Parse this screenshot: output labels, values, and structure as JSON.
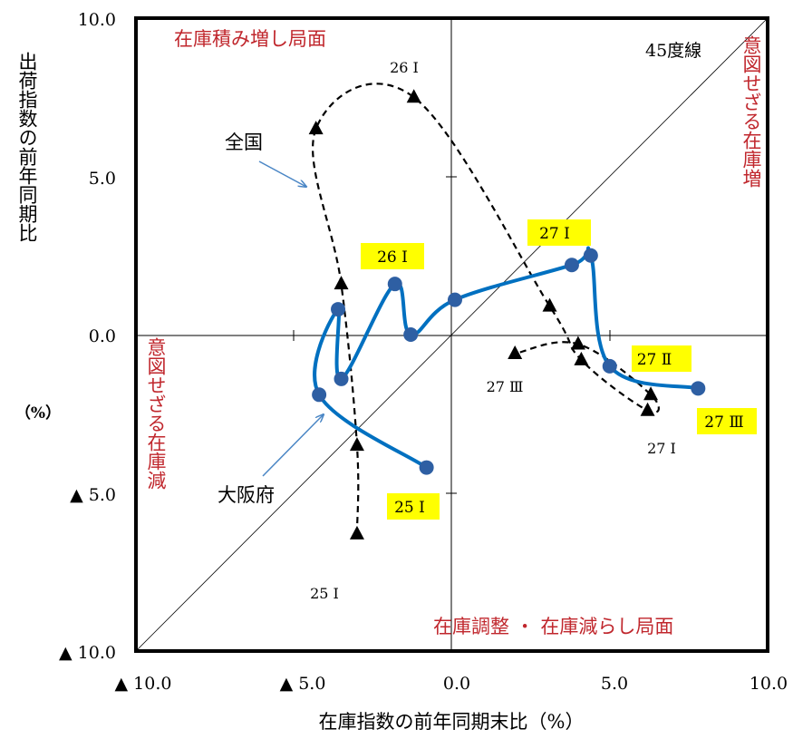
{
  "chart_data": {
    "type": "line",
    "xlabel": "在庫指数の前年同期末比（%）",
    "ylabel": "出荷指数の前年同期比",
    "ylabel_unit": "（%）",
    "xlim": [
      -10,
      10
    ],
    "ylim": [
      -10,
      10
    ],
    "x_ticks": [
      "▲ 10.0",
      "▲ 5.0",
      "0.0",
      "5.0",
      "10.0"
    ],
    "y_ticks": [
      "10.0",
      "5.0",
      "0.0",
      "▲ 5.0",
      "▲ 10.0"
    ],
    "quadrant_labels": {
      "top_left": "在庫積み増し局面",
      "right": "意図せざる在庫増",
      "left": "意図せざる在庫減",
      "bottom_right": "在庫調整 ・ 在庫減らし局面"
    },
    "diagonal_label": "45度線",
    "series": [
      {
        "name": "大阪府",
        "color": "#0070c0",
        "marker": "circle",
        "points": [
          {
            "x": -0.8,
            "y": -4.2
          },
          {
            "x": -4.2,
            "y": -1.9
          },
          {
            "x": -3.6,
            "y": 0.8
          },
          {
            "x": -3.5,
            "y": -1.4
          },
          {
            "x": -1.8,
            "y": 1.6
          },
          {
            "x": -1.3,
            "y": 0.0
          },
          {
            "x": 0.1,
            "y": 1.1
          },
          {
            "x": 3.8,
            "y": 2.2
          },
          {
            "x": 4.4,
            "y": 2.5
          },
          {
            "x": 5.0,
            "y": -1.0
          },
          {
            "x": 7.8,
            "y": -1.7
          }
        ]
      },
      {
        "name": "全国",
        "color": "#000000",
        "marker": "triangle",
        "points": [
          {
            "x": -3.0,
            "y": -6.3
          },
          {
            "x": -3.0,
            "y": -3.5
          },
          {
            "x": -3.5,
            "y": 1.6
          },
          {
            "x": -4.3,
            "y": 6.5
          },
          {
            "x": -1.2,
            "y": 7.5
          },
          {
            "x": 3.1,
            "y": 0.9
          },
          {
            "x": 4.1,
            "y": -0.8
          },
          {
            "x": 6.2,
            "y": -2.4
          },
          {
            "x": 6.3,
            "y": -1.9
          },
          {
            "x": 4.0,
            "y": -0.3
          },
          {
            "x": 2.0,
            "y": -0.6
          }
        ]
      }
    ],
    "point_labels": [
      {
        "text": "26 Ⅰ",
        "series": "大阪府",
        "highlight": true
      },
      {
        "text": "27 Ⅰ",
        "series": "大阪府",
        "highlight": true
      },
      {
        "text": "27 Ⅱ",
        "series": "大阪府",
        "highlight": true
      },
      {
        "text": "27 Ⅲ",
        "series": "大阪府",
        "highlight": true
      },
      {
        "text": "25 Ⅰ",
        "series": "大阪府",
        "highlight": true
      },
      {
        "text": "26 Ⅰ",
        "series": "全国",
        "highlight": false
      },
      {
        "text": "27 Ⅲ",
        "series": "全国",
        "highlight": false
      },
      {
        "text": "27 Ⅰ",
        "series": "全国",
        "highlight": false
      },
      {
        "text": "25 Ⅰ",
        "series": "全国",
        "highlight": false
      }
    ],
    "grid": false,
    "legend": "callout-arrows"
  }
}
